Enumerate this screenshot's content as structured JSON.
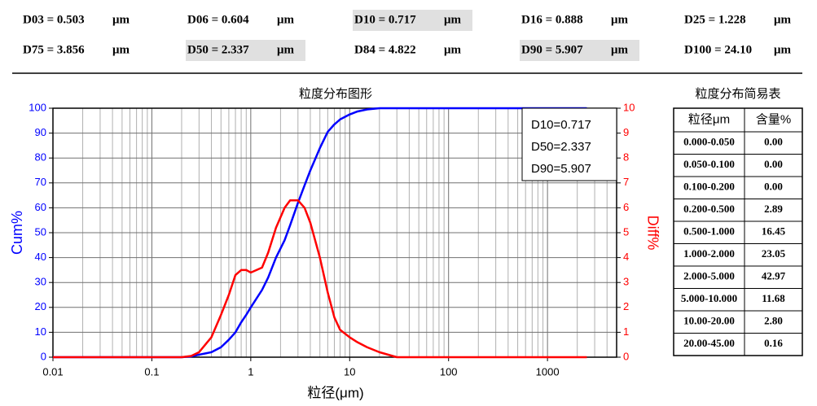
{
  "stats": [
    {
      "text": "D03 = 0.503",
      "unit": "μm",
      "highlight": false
    },
    {
      "text": "D06 = 0.604",
      "unit": "μm",
      "highlight": false
    },
    {
      "text": "D10 = 0.717",
      "unit": "μm",
      "highlight": true
    },
    {
      "text": "D16 = 0.888",
      "unit": "μm",
      "highlight": false
    },
    {
      "text": "D25 = 1.228",
      "unit": "μm",
      "highlight": false
    },
    {
      "text": "D75 = 3.856",
      "unit": "μm",
      "highlight": false
    },
    {
      "text": "D50 = 2.337",
      "unit": "μm",
      "highlight": true
    },
    {
      "text": "D84 = 4.822",
      "unit": "μm",
      "highlight": false
    },
    {
      "text": "D90 = 5.907",
      "unit": "μm",
      "highlight": true
    },
    {
      "text": "D100 = 24.10",
      "unit": "μm",
      "highlight": false
    }
  ],
  "chart_data": {
    "type": "line",
    "title": "粒度分布图形",
    "x_label": "粒径(μm)",
    "y_label": "Cum%",
    "y2_label": "Diff%",
    "log_x": true,
    "grid": true,
    "minor_grid": true,
    "xlim": [
      0.01,
      5000
    ],
    "xticks": [
      0.01,
      0.1,
      1,
      10,
      100,
      1000
    ],
    "ylim": [
      0,
      100
    ],
    "yticks": [
      0,
      10,
      20,
      30,
      40,
      50,
      60,
      70,
      80,
      90,
      100
    ],
    "y2lim": [
      0,
      10
    ],
    "y2ticks": [
      0,
      1,
      2,
      3,
      4,
      5,
      6,
      7,
      8,
      9,
      10
    ],
    "y_color": "#0000ff",
    "y2_color": "#ff0000",
    "x": [
      0.01,
      0.2,
      0.25,
      0.3,
      0.4,
      0.5,
      0.6,
      0.7,
      0.8,
      0.9,
      1,
      1.3,
      1.5,
      1.8,
      2.2,
      2.5,
      3,
      3.5,
      4,
      5,
      6,
      7,
      8,
      10,
      12,
      15,
      20,
      30,
      100,
      1000,
      2500
    ],
    "series": [
      {
        "color": "#0000ff",
        "axis": "y",
        "values": [
          0,
          0,
          0.3,
          1,
          2,
          4,
          7,
          10,
          14,
          17,
          20,
          27,
          32,
          40,
          47,
          53,
          62,
          69,
          75,
          84,
          90.5,
          93.5,
          95.5,
          97.5,
          98.7,
          99.5,
          100,
          100,
          100,
          100,
          100
        ]
      },
      {
        "color": "#ff0000",
        "axis": "y2",
        "values": [
          0,
          0,
          0.05,
          0.2,
          0.8,
          1.7,
          2.5,
          3.3,
          3.5,
          3.5,
          3.4,
          3.6,
          4.2,
          5.2,
          6.0,
          6.3,
          6.3,
          6.0,
          5.4,
          4.0,
          2.6,
          1.6,
          1.1,
          0.8,
          0.6,
          0.4,
          0.2,
          0,
          0,
          0,
          0
        ]
      }
    ],
    "annotations": [
      "D10=0.717",
      "D50=2.337",
      "D90=5.907"
    ]
  },
  "table": {
    "title": "粒度分布简易表",
    "headers": [
      "粒径μm",
      "含量%"
    ],
    "rows": [
      [
        "0.000-0.050",
        "0.00"
      ],
      [
        "0.050-0.100",
        "0.00"
      ],
      [
        "0.100-0.200",
        "0.00"
      ],
      [
        "0.200-0.500",
        "2.89"
      ],
      [
        "0.500-1.000",
        "16.45"
      ],
      [
        "1.000-2.000",
        "23.05"
      ],
      [
        "2.000-5.000",
        "42.97"
      ],
      [
        "5.000-10.000",
        "11.68"
      ],
      [
        "10.00-20.00",
        "2.80"
      ],
      [
        "20.00-45.00",
        "0.16"
      ]
    ]
  }
}
